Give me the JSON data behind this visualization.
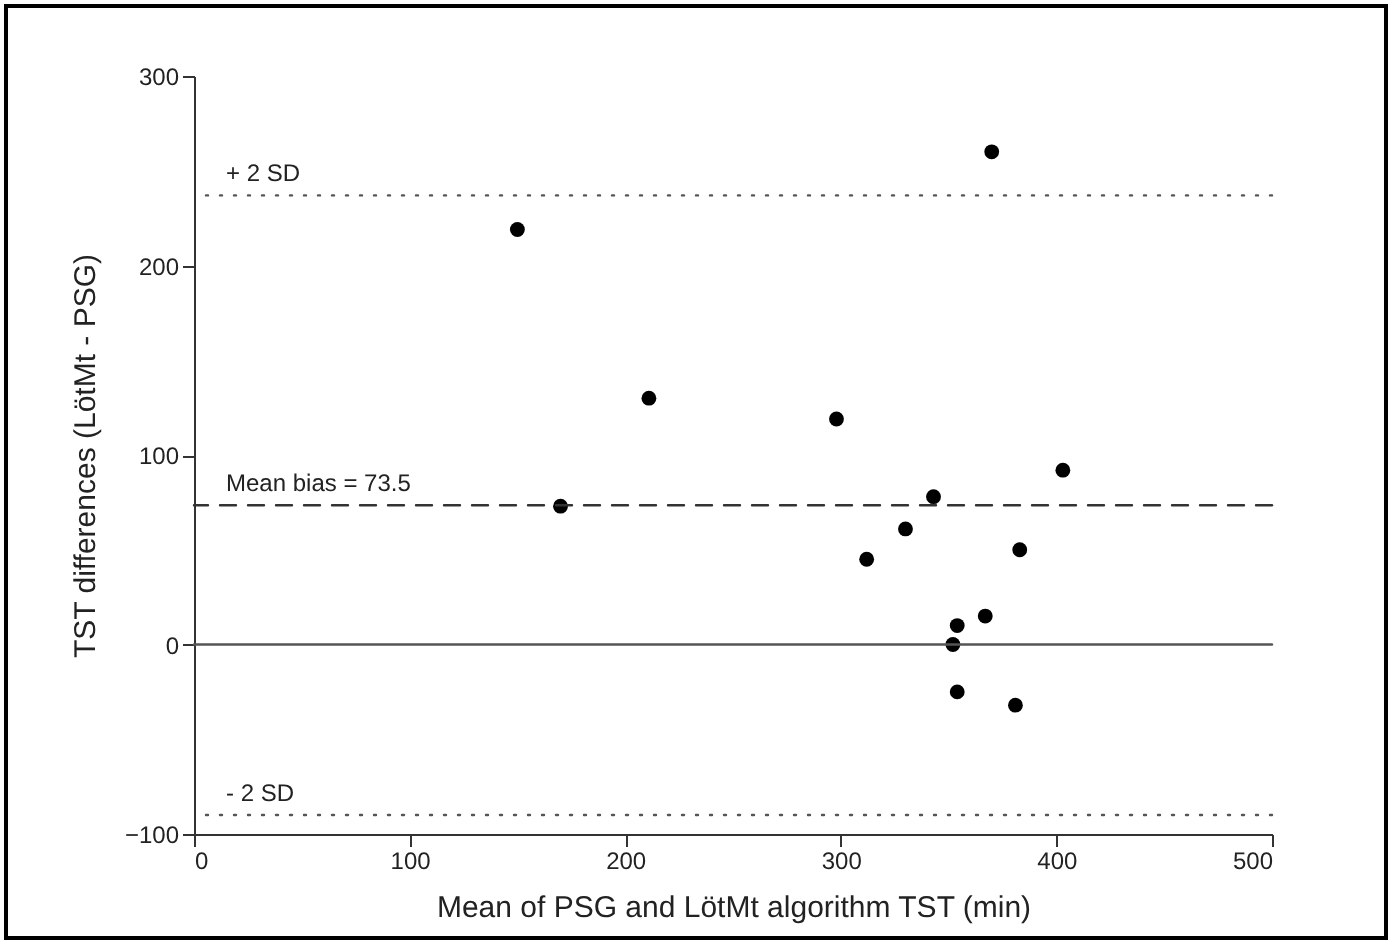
{
  "chart_data": {
    "type": "scatter",
    "xlabel": "Mean of PSG and LötMt algorithm TST (min)",
    "ylabel": "TST differences (LötMt - PSG)",
    "x": [
      150,
      170,
      211,
      298,
      312,
      330,
      343,
      352,
      354,
      354,
      367,
      370,
      381,
      383,
      403
    ],
    "values": [
      219,
      73,
      130,
      119,
      45,
      61,
      78,
      0,
      10,
      -25,
      15,
      260,
      -32,
      50,
      92
    ],
    "color": "#000000",
    "marker": "circle",
    "xlim": [
      0,
      500
    ],
    "xticks": [
      0,
      100,
      200,
      300,
      400,
      500
    ],
    "ylim": [
      -100,
      300
    ],
    "yticks": [
      -100,
      0,
      100,
      200,
      300
    ],
    "grid": false,
    "ref_lines": [
      {
        "axis": "y",
        "value": 0,
        "label": null,
        "line_style": "solid",
        "color": "#555555"
      },
      {
        "axis": "y",
        "value": 73.5,
        "label": "Mean bias = 73.5",
        "line_style": "dashed",
        "color": "#333333"
      },
      {
        "axis": "y",
        "value": 237,
        "label": "+ 2 SD",
        "line_style": "dotted",
        "color": "#555555"
      },
      {
        "axis": "y",
        "value": -90,
        "label": "- 2 SD",
        "line_style": "dotted",
        "color": "#555555"
      }
    ]
  }
}
